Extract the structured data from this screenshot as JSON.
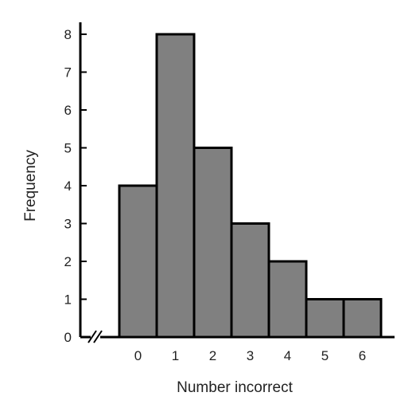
{
  "chart_data": {
    "type": "bar",
    "title": "",
    "xlabel": "Number incorrect",
    "ylabel": "Frequency",
    "categories": [
      "0",
      "1",
      "2",
      "3",
      "4",
      "5",
      "6"
    ],
    "values": [
      4,
      8,
      5,
      3,
      2,
      1,
      1
    ],
    "ylim": [
      0,
      8
    ],
    "yticks": [
      "0",
      "1",
      "2",
      "3",
      "4",
      "5",
      "6",
      "7",
      "8"
    ],
    "bar_color": "#808080",
    "bar_edge_color": "#000000",
    "grid": false,
    "legend": "none",
    "x_axis_break": true
  }
}
